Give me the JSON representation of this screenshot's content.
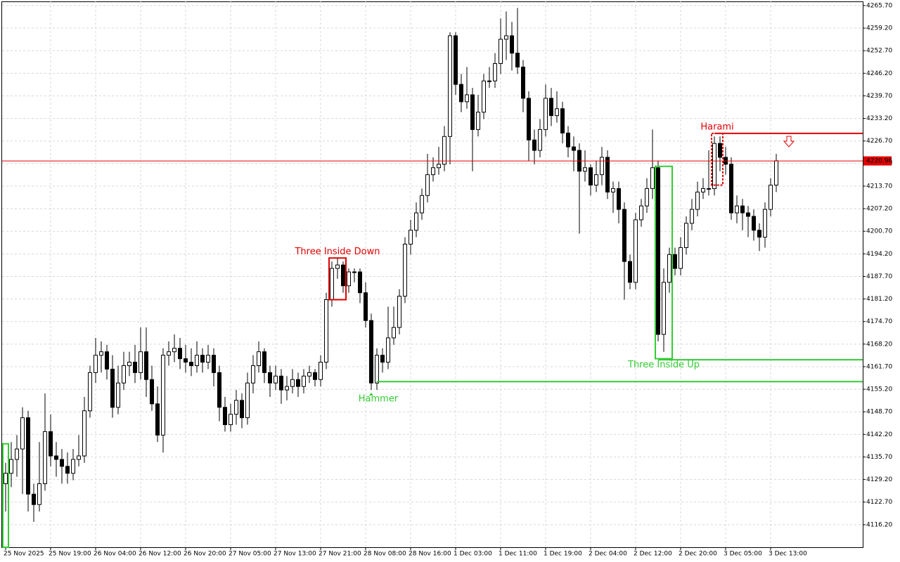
{
  "chart_data": {
    "type": "candlestick",
    "bull_color": "#ffffff",
    "bear_color": "#000000",
    "grid": true,
    "ylim": [
      4109.7,
      4266.9
    ],
    "yticks": [
      {
        "value": 4265.7,
        "label": "4265.70"
      },
      {
        "value": 4259.2,
        "label": "4259.20"
      },
      {
        "value": 4252.7,
        "label": "4252.70"
      },
      {
        "value": 4246.2,
        "label": "4246.20"
      },
      {
        "value": 4239.7,
        "label": "4239.70"
      },
      {
        "value": 4233.2,
        "label": "4233.20"
      },
      {
        "value": 4226.7,
        "label": "4226.70"
      },
      {
        "value": 4220.2,
        "label": "4220.20"
      },
      {
        "value": 4213.7,
        "label": "4213.70"
      },
      {
        "value": 4207.2,
        "label": "4207.20"
      },
      {
        "value": 4200.7,
        "label": "4200.70"
      },
      {
        "value": 4194.2,
        "label": "4194.20"
      },
      {
        "value": 4187.7,
        "label": "4187.70"
      },
      {
        "value": 4181.2,
        "label": "4181.20"
      },
      {
        "value": 4174.7,
        "label": "4174.70"
      },
      {
        "value": 4168.2,
        "label": "4168.20"
      },
      {
        "value": 4161.7,
        "label": "4161.70"
      },
      {
        "value": 4155.2,
        "label": "4155.20"
      },
      {
        "value": 4148.7,
        "label": "4148.70"
      },
      {
        "value": 4142.2,
        "label": "4142.20"
      },
      {
        "value": 4135.7,
        "label": "4135.70"
      },
      {
        "value": 4129.2,
        "label": "4129.20"
      },
      {
        "value": 4122.7,
        "label": "4122.70"
      },
      {
        "value": 4116.2,
        "label": "4116.20"
      }
    ],
    "last_price": 4220.96,
    "last_price_color": "#e00000",
    "categories": [
      "25 Nov 2025",
      null,
      null,
      null,
      null,
      null,
      null,
      null,
      "25 Nov 19:00",
      null,
      null,
      null,
      null,
      null,
      null,
      null,
      "26 Nov 04:00",
      null,
      null,
      null,
      null,
      null,
      null,
      null,
      "26 Nov 12:00",
      null,
      null,
      null,
      null,
      null,
      null,
      null,
      "26 Nov 20:00",
      null,
      null,
      null,
      null,
      null,
      null,
      null,
      "27 Nov 05:00",
      null,
      null,
      null,
      null,
      null,
      null,
      null,
      "27 Nov 13:00",
      null,
      null,
      null,
      null,
      null,
      null,
      null,
      "27 Nov 21:00",
      null,
      null,
      null,
      null,
      null,
      null,
      null,
      "28 Nov 08:00",
      null,
      null,
      null,
      null,
      null,
      null,
      null,
      "28 Nov 16:00",
      null,
      null,
      null,
      null,
      null,
      null,
      null,
      "1 Dec 03:00",
      null,
      null,
      null,
      null,
      null,
      null,
      null,
      "1 Dec 11:00",
      null,
      null,
      null,
      null,
      null,
      null,
      null,
      "1 Dec 19:00",
      null,
      null,
      null,
      null,
      null,
      null,
      null,
      "2 Dec 04:00",
      null,
      null,
      null,
      null,
      null,
      null,
      null,
      "2 Dec 12:00",
      null,
      null,
      null,
      null,
      null,
      null,
      null,
      "2 Dec 20:00",
      null,
      null,
      null,
      null,
      null,
      null,
      null,
      "3 Dec 05:00",
      null,
      null,
      null,
      null,
      null,
      null,
      null,
      "3 Dec 13:00",
      null
    ],
    "candles": [
      [
        4128,
        4134,
        4120,
        4131
      ],
      [
        4131,
        4140,
        4127,
        4135
      ],
      [
        4135,
        4142,
        4130,
        4138
      ],
      [
        4138,
        4150,
        4125,
        4147
      ],
      [
        4147,
        4149,
        4120,
        4125
      ],
      [
        4125,
        4128,
        4117,
        4122
      ],
      [
        4122,
        4140,
        4120,
        4128
      ],
      [
        4128,
        4154,
        4126,
        4143
      ],
      [
        4143,
        4148,
        4133,
        4136
      ],
      [
        4136,
        4140,
        4130,
        4135
      ],
      [
        4135,
        4138,
        4128,
        4133
      ],
      [
        4133,
        4137,
        4128,
        4131
      ],
      [
        4131,
        4138,
        4129,
        4135
      ],
      [
        4135,
        4142,
        4133,
        4136
      ],
      [
        4136,
        4153,
        4134,
        4149
      ],
      [
        4149,
        4162,
        4147,
        4160
      ],
      [
        4160,
        4170,
        4157,
        4165
      ],
      [
        4165,
        4169,
        4160,
        4166
      ],
      [
        4166,
        4168,
        4158,
        4161
      ],
      [
        4161,
        4165,
        4147,
        4150
      ],
      [
        4150,
        4162,
        4148,
        4157
      ],
      [
        4157,
        4166,
        4155,
        4162
      ],
      [
        4162,
        4166,
        4159,
        4163
      ],
      [
        4163,
        4168,
        4157,
        4160
      ],
      [
        4160,
        4173,
        4158,
        4166
      ],
      [
        4166,
        4173,
        4153,
        4158
      ],
      [
        4158,
        4162,
        4149,
        4151
      ],
      [
        4151,
        4156,
        4140,
        4142
      ],
      [
        4142,
        4167,
        4137,
        4165
      ],
      [
        4165,
        4169,
        4162,
        4166
      ],
      [
        4166,
        4171,
        4163,
        4167
      ],
      [
        4167,
        4170,
        4161,
        4164
      ],
      [
        4164,
        4168,
        4160,
        4163
      ],
      [
        4163,
        4167,
        4159,
        4162
      ],
      [
        4162,
        4169,
        4160,
        4165
      ],
      [
        4165,
        4167,
        4160,
        4163
      ],
      [
        4163,
        4168,
        4161,
        4165
      ],
      [
        4165,
        4167,
        4156,
        4160
      ],
      [
        4160,
        4162,
        4146,
        4150
      ],
      [
        4150,
        4153,
        4143,
        4145
      ],
      [
        4145,
        4151,
        4143,
        4148
      ],
      [
        4148,
        4155,
        4145,
        4152
      ],
      [
        4152,
        4154,
        4144,
        4147
      ],
      [
        4147,
        4160,
        4145,
        4157
      ],
      [
        4157,
        4165,
        4154,
        4162
      ],
      [
        4162,
        4169,
        4160,
        4166
      ],
      [
        4166,
        4167,
        4157,
        4160
      ],
      [
        4160,
        4162,
        4153,
        4157
      ],
      [
        4157,
        4162,
        4155,
        4159
      ],
      [
        4159,
        4161,
        4151,
        4155
      ],
      [
        4155,
        4159,
        4152,
        4156
      ],
      [
        4156,
        4161,
        4154,
        4158
      ],
      [
        4158,
        4160,
        4153,
        4156
      ],
      [
        4156,
        4161,
        4154,
        4159
      ],
      [
        4159,
        4162,
        4157,
        4160
      ],
      [
        4160,
        4161,
        4156,
        4158
      ],
      [
        4158,
        4165,
        4156,
        4163
      ],
      [
        4163,
        4183,
        4161,
        4181
      ],
      [
        4181,
        4192,
        4179,
        4190
      ],
      [
        4190,
        4193,
        4187,
        4191
      ],
      [
        4191,
        4192,
        4183,
        4185
      ],
      [
        4185,
        4190,
        4183,
        4189
      ],
      [
        4189,
        4190,
        4186,
        4189
      ],
      [
        4189,
        4190,
        4180,
        4183
      ],
      [
        4183,
        4186,
        4173,
        4175
      ],
      [
        4175,
        4177,
        4155,
        4157
      ],
      [
        4157,
        4167,
        4155,
        4165
      ],
      [
        4165,
        4167,
        4160,
        4163
      ],
      [
        4163,
        4179,
        4161,
        4170
      ],
      [
        4170,
        4179,
        4168,
        4173
      ],
      [
        4173,
        4184,
        4171,
        4182
      ],
      [
        4182,
        4199,
        4180,
        4197
      ],
      [
        4197,
        4204,
        4194,
        4201
      ],
      [
        4201,
        4209,
        4199,
        4206
      ],
      [
        4206,
        4213,
        4204,
        4211
      ],
      [
        4211,
        4223,
        4209,
        4217
      ],
      [
        4217,
        4222,
        4215,
        4219
      ],
      [
        4219,
        4225,
        4217,
        4220
      ],
      [
        4220,
        4231,
        4218,
        4228
      ],
      [
        4228,
        4258,
        4220,
        4257
      ],
      [
        4257,
        4258,
        4240,
        4243
      ],
      [
        4243,
        4246,
        4235,
        4238
      ],
      [
        4238,
        4248,
        4236,
        4240
      ],
      [
        4240,
        4242,
        4218,
        4230
      ],
      [
        4230,
        4240,
        4228,
        4235
      ],
      [
        4235,
        4246,
        4233,
        4244
      ],
      [
        4244,
        4248,
        4242,
        4244
      ],
      [
        4244,
        4252,
        4242,
        4249
      ],
      [
        4249,
        4262,
        4246,
        4256
      ],
      [
        4256,
        4264,
        4250,
        4257
      ],
      [
        4257,
        4261,
        4247,
        4252
      ],
      [
        4252,
        4265,
        4246,
        4248
      ],
      [
        4248,
        4250,
        4235,
        4239
      ],
      [
        4239,
        4241,
        4221,
        4227
      ],
      [
        4227,
        4230,
        4220,
        4224
      ],
      [
        4224,
        4233,
        4222,
        4230
      ],
      [
        4230,
        4243,
        4228,
        4239
      ],
      [
        4239,
        4242,
        4231,
        4234
      ],
      [
        4234,
        4241,
        4232,
        4236
      ],
      [
        4236,
        4238,
        4226,
        4229
      ],
      [
        4229,
        4231,
        4222,
        4225
      ],
      [
        4225,
        4228,
        4218,
        4224
      ],
      [
        4224,
        4226,
        4200,
        4218
      ],
      [
        4218,
        4224,
        4215,
        4219
      ],
      [
        4219,
        4220,
        4211,
        4214
      ],
      [
        4214,
        4221,
        4212,
        4217
      ],
      [
        4217,
        4225,
        4214,
        4222
      ],
      [
        4222,
        4224,
        4210,
        4212
      ],
      [
        4212,
        4215,
        4206,
        4213
      ],
      [
        4213,
        4215,
        4203,
        4207
      ],
      [
        4207,
        4209,
        4181,
        4192
      ],
      [
        4192,
        4194,
        4184,
        4186
      ],
      [
        4186,
        4206,
        4184,
        4204
      ],
      [
        4204,
        4210,
        4202,
        4208
      ],
      [
        4208,
        4216,
        4206,
        4213
      ],
      [
        4213,
        4230,
        4210,
        4219
      ],
      [
        4219,
        4221,
        4169,
        4171
      ],
      [
        4171,
        4190,
        4166,
        4186
      ],
      [
        4186,
        4196,
        4183,
        4194
      ],
      [
        4194,
        4196,
        4188,
        4190
      ],
      [
        4190,
        4199,
        4188,
        4196
      ],
      [
        4196,
        4205,
        4194,
        4203
      ],
      [
        4203,
        4210,
        4201,
        4207
      ],
      [
        4207,
        4215,
        4205,
        4212
      ],
      [
        4212,
        4216,
        4210,
        4213
      ],
      [
        4213,
        4224,
        4211,
        4213
      ],
      [
        4213,
        4228,
        4211,
        4226
      ],
      [
        4226,
        4228,
        4218,
        4222
      ],
      [
        4222,
        4225,
        4217,
        4220
      ],
      [
        4220,
        4222,
        4204,
        4206
      ],
      [
        4206,
        4211,
        4203,
        4208
      ],
      [
        4208,
        4210,
        4201,
        4206
      ],
      [
        4206,
        4208,
        4199,
        4205
      ],
      [
        4205,
        4207,
        4198,
        4201
      ],
      [
        4201,
        4203,
        4195,
        4199
      ],
      [
        4199,
        4209,
        4196,
        4207
      ],
      [
        4207,
        4216,
        4205,
        4214
      ],
      [
        4214,
        4223,
        4212,
        4221
      ]
    ],
    "patterns": [
      {
        "candles": [
          0,
          0
        ],
        "high": 4139.5,
        "low": 4109.7,
        "color": "#33cc33",
        "style": "solid"
      },
      {
        "label": "Three Inside Down",
        "candles": [
          58,
          60
        ],
        "high": 4193,
        "low": 4181,
        "color": "#e00000",
        "style": "solid",
        "label_position": "above"
      },
      {
        "label": "Hammer",
        "candles": [
          65,
          65
        ],
        "color": "#33cc33",
        "marker": true,
        "low": 4155,
        "label_position": "below"
      },
      {
        "label": "Three Inside Up",
        "candles": [
          116,
          118
        ],
        "high": 4219.4,
        "low": 4164,
        "color": "#33cc33",
        "style": "solid",
        "label_position": "below"
      },
      {
        "label": "Harami",
        "candles": [
          126,
          127
        ],
        "high": 4228.9,
        "low": 4214,
        "color": "#e00000",
        "style": "dashed",
        "label_position": "above"
      }
    ],
    "levels": [
      {
        "value": 4228.9,
        "from": 126,
        "color": "#e00000"
      },
      {
        "value": 4157.4,
        "from": 66,
        "color": "#33cc33"
      },
      {
        "value": 4163.7,
        "from": 116,
        "color": "#33cc33"
      }
    ]
  }
}
